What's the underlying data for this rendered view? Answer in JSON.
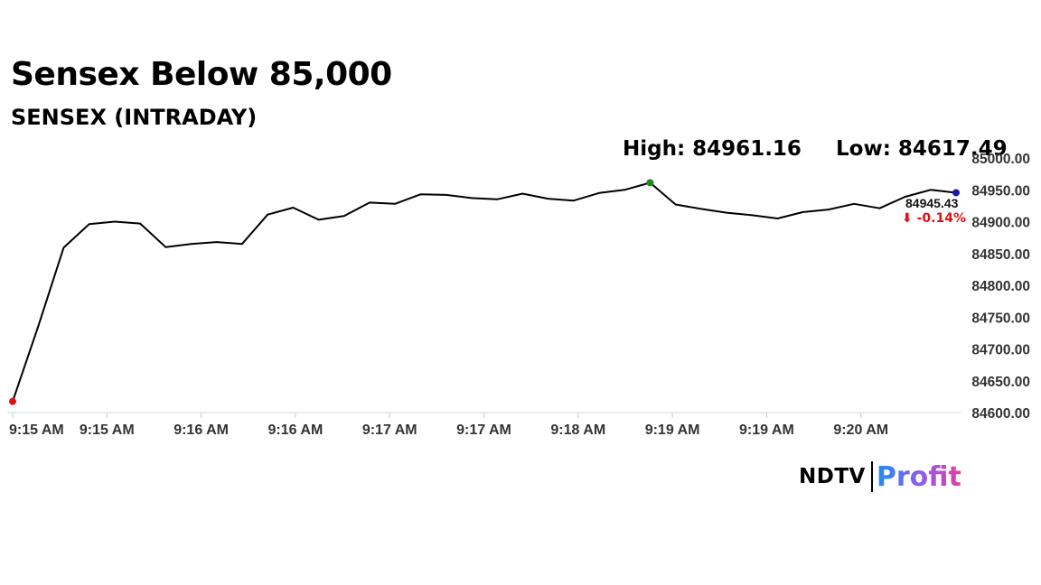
{
  "title": "Sensex Below 85,000",
  "subtitle": "SENSEX (INTRADAY)",
  "high_text": "High: 84961.16",
  "low_text": "Low: 84617.49",
  "logo": {
    "ndtv": "NDTV",
    "profit": "Profit"
  },
  "chart_data": {
    "type": "line",
    "title": "SENSEX (INTRADAY)",
    "x_tick_labels": [
      "9:15 AM",
      "9:15 AM",
      "9:16 AM",
      "9:16 AM",
      "9:17 AM",
      "9:17 AM",
      "9:18 AM",
      "9:19 AM",
      "9:19 AM",
      "9:20 AM"
    ],
    "y_tick_labels": [
      "85000.00",
      "84950.00",
      "84900.00",
      "84850.00",
      "84800.00",
      "84750.00",
      "84700.00",
      "84650.00",
      "84600.00"
    ],
    "ylim": [
      84600,
      85000
    ],
    "y_axis_side": "right",
    "grid": false,
    "series": [
      {
        "color": "#000000",
        "values": [
          84617.49,
          84735,
          84859,
          84896,
          84900,
          84897,
          84860,
          84865,
          84868,
          84865,
          84911,
          84922,
          84903,
          84909,
          84930,
          84928,
          84943,
          84942,
          84937,
          84935,
          84944,
          84936,
          84933,
          84945,
          84950,
          84961.16,
          84927,
          84920,
          84914,
          84910,
          84905,
          84915,
          84919,
          84928,
          84921,
          84939,
          84950,
          84945.43
        ]
      }
    ],
    "high": {
      "index": 25,
      "value": 84961.16,
      "color": "#1e8a1e"
    },
    "low": {
      "index": 0,
      "value": 84617.49,
      "color": "#e01010"
    },
    "last": {
      "index": 37,
      "value": 84945.43,
      "color": "#1a1aa8"
    },
    "last_label": "84945.43",
    "change_label": "-0.14%",
    "change_color": "#e01010",
    "change_arrow": "⬇"
  }
}
